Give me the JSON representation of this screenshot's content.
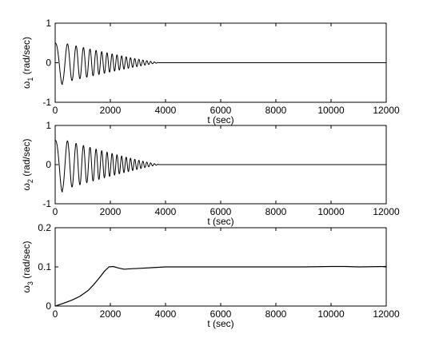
{
  "chart_data": [
    {
      "type": "line",
      "xlabel": "t (sec)",
      "ylabel": "ω1 (rad/sec)",
      "ylabel_symbol": "ω",
      "ylabel_sub": "1",
      "ylabel_unit": "(rad/sec)",
      "xlim": [
        0,
        12000
      ],
      "ylim": [
        -1,
        1
      ],
      "x_ticks": [
        "0",
        "2000",
        "4000",
        "6000",
        "8000",
        "10000",
        "12000"
      ],
      "y_ticks": [
        "-1",
        "0",
        "1"
      ],
      "grid": false,
      "signal": {
        "shape": "decaying-chirp-oscillation",
        "initial_value": 0.5,
        "peak_amplitude": 0.55,
        "decay_end_x": 3800,
        "final_value": 0
      },
      "color": "#000000"
    },
    {
      "type": "line",
      "xlabel": "t (sec)",
      "ylabel": "ω2 (rad/sec)",
      "ylabel_symbol": "ω",
      "ylabel_sub": "2",
      "ylabel_unit": "(rad/sec)",
      "xlim": [
        0,
        12000
      ],
      "ylim": [
        -1,
        1
      ],
      "x_ticks": [
        "0",
        "2000",
        "4000",
        "6000",
        "8000",
        "10000",
        "12000"
      ],
      "y_ticks": [
        "-1",
        "0",
        "1"
      ],
      "grid": false,
      "signal": {
        "shape": "decaying-chirp-oscillation",
        "initial_value": 0.62,
        "peak_amplitude": 0.7,
        "decay_end_x": 3800,
        "final_value": 0
      },
      "color": "#000000"
    },
    {
      "type": "line",
      "xlabel": "t (sec)",
      "ylabel": "ω3 (rad/sec)",
      "ylabel_symbol": "ω",
      "ylabel_sub": "3",
      "ylabel_unit": "(rad/sec)",
      "xlim": [
        0,
        12000
      ],
      "ylim": [
        0,
        0.2
      ],
      "x_ticks": [
        "0",
        "2000",
        "4000",
        "6000",
        "8000",
        "10000",
        "12000"
      ],
      "y_ticks": [
        "0",
        "0.1",
        "0.2"
      ],
      "grid": false,
      "x": [
        0,
        300,
        600,
        900,
        1200,
        1400,
        1600,
        1800,
        1950,
        2100,
        2300,
        2500,
        2700,
        3000,
        3500,
        4000,
        5000,
        6000,
        7000,
        8000,
        9000,
        10000,
        10500,
        11000,
        12000
      ],
      "y": [
        0.0,
        0.007,
        0.015,
        0.025,
        0.04,
        0.055,
        0.072,
        0.09,
        0.1,
        0.101,
        0.097,
        0.094,
        0.095,
        0.096,
        0.098,
        0.1,
        0.1,
        0.1,
        0.1,
        0.1,
        0.1,
        0.101,
        0.101,
        0.1,
        0.101
      ],
      "color": "#000000"
    }
  ]
}
